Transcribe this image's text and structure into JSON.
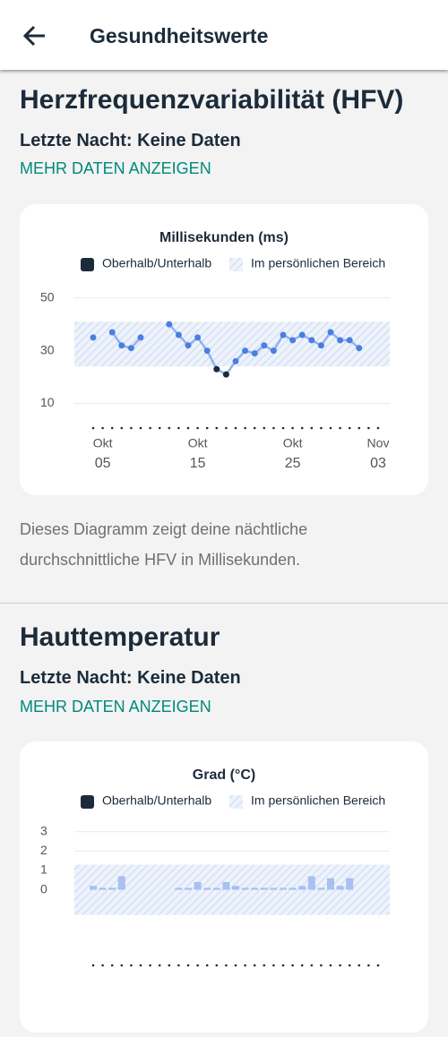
{
  "header": {
    "title": "Gesundheitswerte"
  },
  "sections": [
    {
      "title": "Herzfrequenzvariabilität (HFV)",
      "status": "Letzte Nacht: Keine Daten",
      "link": "MEHR DATEN ANZEIGEN",
      "chart_data": {
        "type": "line",
        "title": "Millisekunden (ms)",
        "legend": [
          {
            "label": "Oberhalb/Unterhalb",
            "color": "#1c2b3a",
            "hatched": false
          },
          {
            "label": "Im persönlichen Bereich",
            "color": "#c9d8f3",
            "hatched": true
          }
        ],
        "range": [
          24,
          41
        ],
        "categories": [
          null,
          {
            "month": "Okt",
            "day": "05"
          },
          null,
          null,
          null,
          null,
          null,
          null,
          null,
          null,
          null,
          {
            "month": "Okt",
            "day": "15"
          },
          null,
          null,
          null,
          null,
          null,
          null,
          null,
          null,
          null,
          {
            "month": "Okt",
            "day": "25"
          },
          null,
          null,
          null,
          null,
          null,
          null,
          null,
          null,
          {
            "month": "Nov",
            "day": "03"
          }
        ],
        "values": [
          35,
          null,
          37,
          32,
          31,
          35,
          null,
          null,
          40,
          36,
          32,
          35,
          30,
          23,
          21,
          26,
          30,
          29,
          32,
          30,
          36,
          34,
          36,
          34,
          32,
          37,
          34,
          34,
          31,
          null,
          null
        ],
        "line_color": "#8fb3f0",
        "point_color": "#4a7fe0",
        "outside_color": "#1c2b3a",
        "ylim": [
          0,
          55
        ],
        "yticks": [
          10,
          30,
          50
        ],
        "grid": true
      },
      "description": "Dieses Diagramm zeigt deine nächtliche durchschnittliche HFV in Millisekunden."
    },
    {
      "title": "Hauttemperatur",
      "status": "Letzte Nacht: Keine Daten",
      "link": "MEHR DATEN ANZEIGEN",
      "chart_data": {
        "type": "bar",
        "title": "Grad (°C)",
        "legend": [
          {
            "label": "Oberhalb/Unterhalb",
            "color": "#1c2b3a",
            "hatched": false
          },
          {
            "label": "Im persönlichen Bereich",
            "color": "#c9d8f3",
            "hatched": true
          }
        ],
        "range": [
          -1.3,
          1.3
        ],
        "categories": [
          null,
          null,
          null,
          null,
          null,
          null,
          null,
          null,
          null,
          null,
          null,
          null,
          null,
          null,
          null,
          null,
          null,
          null,
          null,
          null,
          null,
          null,
          null,
          null,
          null,
          null,
          null,
          null,
          null,
          null,
          null
        ],
        "values": [
          0.2,
          0.1,
          0.1,
          0.7,
          null,
          null,
          null,
          null,
          null,
          0.1,
          0.1,
          0.4,
          0.1,
          0.1,
          0.4,
          0.2,
          0.1,
          0.1,
          0.1,
          0.1,
          0.1,
          0.1,
          0.2,
          0.7,
          0.1,
          0.6,
          0.2,
          0.6,
          null,
          null,
          null
        ],
        "bar_color": "#a8c0f2",
        "ylim": [
          -4,
          3.5
        ],
        "yticks": [
          0,
          1,
          2,
          3
        ],
        "grid": true
      }
    }
  ]
}
